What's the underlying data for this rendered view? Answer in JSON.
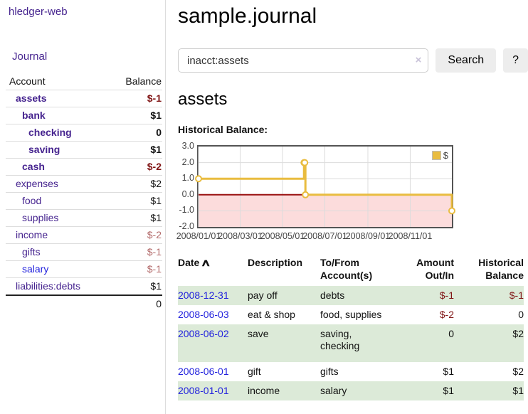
{
  "sidebar": {
    "app_title": "hledger-web",
    "journal_link": "Journal",
    "col_account": "Account",
    "col_balance": "Balance",
    "accounts": [
      {
        "name": "assets",
        "balance": "$-1",
        "depth": 1,
        "bold": true,
        "amt": "neg",
        "link": "purple"
      },
      {
        "name": "bank",
        "balance": "$1",
        "depth": 2,
        "bold": true,
        "amt": "pos",
        "link": "purple"
      },
      {
        "name": "checking",
        "balance": "0",
        "depth": 3,
        "bold": true,
        "amt": "pos",
        "link": "purple"
      },
      {
        "name": "saving",
        "balance": "$1",
        "depth": 3,
        "bold": true,
        "amt": "pos",
        "link": "purple"
      },
      {
        "name": "cash",
        "balance": "$-2",
        "depth": 2,
        "bold": true,
        "amt": "neg",
        "link": "purple"
      },
      {
        "name": "expenses",
        "balance": "$2",
        "depth": 1,
        "bold": false,
        "amt": "pos",
        "link": "purple"
      },
      {
        "name": "food",
        "balance": "$1",
        "depth": 2,
        "bold": false,
        "amt": "pos",
        "link": "purple"
      },
      {
        "name": "supplies",
        "balance": "$1",
        "depth": 2,
        "bold": false,
        "amt": "pos",
        "link": "purple"
      },
      {
        "name": "income",
        "balance": "$-2",
        "depth": 1,
        "bold": false,
        "amt": "dimneg",
        "link": "purple"
      },
      {
        "name": "gifts",
        "balance": "$-1",
        "depth": 2,
        "bold": false,
        "amt": "dimneg",
        "link": "purple"
      },
      {
        "name": "salary",
        "balance": "$-1",
        "depth": 2,
        "bold": false,
        "amt": "dimneg",
        "link": "blue"
      },
      {
        "name": "liabilities:debts",
        "balance": "$1",
        "depth": 1,
        "bold": false,
        "amt": "pos",
        "link": "purple"
      }
    ],
    "total": "0"
  },
  "header": {
    "title": "sample.journal"
  },
  "search": {
    "query": "inacct:assets",
    "clear_label": "×",
    "button_label": "Search",
    "help_label": "?"
  },
  "register": {
    "account_heading": "assets",
    "chart_label": "Historical Balance:",
    "table": {
      "headers": {
        "date": "Date",
        "sort_indicator": "∧",
        "description": "Description",
        "tofrom": "To/From Account(s)",
        "amount": "Amount Out/In",
        "historical": "Historical Balance"
      },
      "rows": [
        {
          "date": "2008-12-31",
          "description": "pay off",
          "tofrom": "debts",
          "amount": "$-1",
          "amount_neg": true,
          "historical": "$-1",
          "historical_neg": true
        },
        {
          "date": "2008-06-03",
          "description": "eat & shop",
          "tofrom": "food, supplies",
          "amount": "$-2",
          "amount_neg": true,
          "historical": "0",
          "historical_neg": false
        },
        {
          "date": "2008-06-02",
          "description": "save",
          "tofrom": "saving, checking",
          "amount": "0",
          "amount_neg": false,
          "historical": "$2",
          "historical_neg": false
        },
        {
          "date": "2008-06-01",
          "description": "gift",
          "tofrom": "gifts",
          "amount": "$1",
          "amount_neg": false,
          "historical": "$2",
          "historical_neg": false
        },
        {
          "date": "2008-01-01",
          "description": "income",
          "tofrom": "salary",
          "amount": "$1",
          "amount_neg": false,
          "historical": "$1",
          "historical_neg": false
        }
      ]
    }
  },
  "chart_data": {
    "type": "line",
    "step": true,
    "title": "Historical Balance",
    "legend_position": "top-right",
    "legend": [
      {
        "label": "$",
        "color": "#e9bc3f"
      }
    ],
    "series": [
      {
        "name": "$",
        "points": [
          [
            "2008-01-01",
            1
          ],
          [
            "2008-06-01",
            2
          ],
          [
            "2008-06-02",
            2
          ],
          [
            "2008-06-03",
            0
          ],
          [
            "2008-12-31",
            -1
          ]
        ]
      }
    ],
    "x_ticks": [
      "2008/01/01",
      "2008/03/01",
      "2008/05/01",
      "2008/07/01",
      "2008/09/01",
      "2008/11/01"
    ],
    "y_ticks": [
      "3.0",
      "2.0",
      "1.0",
      "0.0",
      "-1.0",
      "-2.0"
    ],
    "ylim": [
      -2,
      3
    ],
    "x_start": "2008-01-01",
    "x_days": 365,
    "grid": true,
    "line_color": "#e9bc3f",
    "zero_line_color": "#991111",
    "negative_region_color": "#fcdcdc",
    "grid_color": "#dcdcdc",
    "border_color": "#545454"
  }
}
